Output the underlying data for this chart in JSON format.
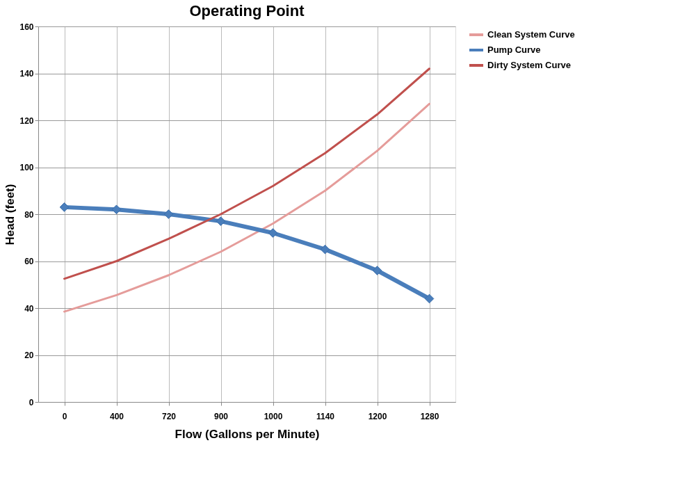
{
  "chart_data": {
    "type": "line",
    "title": "Operating Point",
    "xlabel": "Flow (Gallons per Minute)",
    "ylabel": "Head (feet)",
    "categories": [
      "0",
      "400",
      "720",
      "900",
      "1000",
      "1140",
      "1200",
      "1280"
    ],
    "series": [
      {
        "name": "Clean System Curve",
        "color": "#e59c9a",
        "marker": "none",
        "values": [
          38.5,
          45.5,
          54,
          64,
          76,
          90,
          107,
          127
        ]
      },
      {
        "name": "Pump Curve",
        "color": "#4a7ebb",
        "marker": "diamond",
        "values": [
          83,
          82,
          80,
          77,
          72,
          65,
          56,
          44
        ]
      },
      {
        "name": "Dirty System Curve",
        "color": "#c0504d",
        "marker": "none",
        "values": [
          52.5,
          60,
          69.5,
          80,
          92,
          106,
          122.5,
          142
        ]
      }
    ],
    "ylim": [
      0,
      160
    ],
    "yticks": [
      0,
      20,
      40,
      60,
      80,
      100,
      120,
      140,
      160
    ],
    "grid": true,
    "legend": "right"
  }
}
